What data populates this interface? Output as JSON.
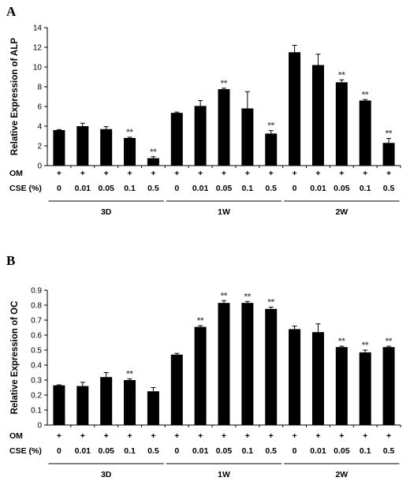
{
  "chart_data": [
    {
      "type": "bar",
      "panel": "A",
      "ylabel": "Relative Expression of ALP",
      "ylim": [
        0,
        14
      ],
      "yticks": [
        "0",
        "2",
        "4",
        "6",
        "8",
        "10",
        "12",
        "14"
      ],
      "row_labels": [
        "OM",
        "CSE (%)"
      ],
      "om_marks": [
        "+",
        "+",
        "+",
        "+",
        "+",
        "+",
        "+",
        "+",
        "+",
        "+",
        "+",
        "+",
        "+",
        "+",
        "+"
      ],
      "cse_values": [
        "0",
        "0.01",
        "0.05",
        "0.1",
        "0.5",
        "0",
        "0.01",
        "0.05",
        "0.1",
        "0.5",
        "0",
        "0.01",
        "0.05",
        "0.1",
        "0.5"
      ],
      "groups": [
        "3D",
        "1W",
        "2W"
      ],
      "values": [
        3.6,
        4.0,
        3.7,
        2.8,
        0.75,
        5.35,
        6.05,
        7.75,
        5.8,
        3.25,
        11.5,
        10.2,
        8.45,
        6.6,
        2.3
      ],
      "errors": [
        0.05,
        0.3,
        0.25,
        0.08,
        0.15,
        0.08,
        0.55,
        0.1,
        1.7,
        0.3,
        0.7,
        1.1,
        0.25,
        0.1,
        0.45
      ],
      "significance": [
        "",
        "",
        "",
        "**",
        "**",
        "",
        "",
        "**",
        "",
        "**",
        "",
        "",
        "**",
        "**",
        "**"
      ]
    },
    {
      "type": "bar",
      "panel": "B",
      "ylabel": "Relative Expression of OC",
      "ylim": [
        0,
        0.9
      ],
      "yticks": [
        "0",
        "0.1",
        "0.2",
        "0.3",
        "0.4",
        "0.5",
        "0.6",
        "0.7",
        "0.8",
        "0.9"
      ],
      "row_labels": [
        "OM",
        "CSE (%)"
      ],
      "om_marks": [
        "+",
        "+",
        "+",
        "+",
        "+",
        "+",
        "+",
        "+",
        "+",
        "+",
        "+",
        "+",
        "+",
        "+",
        "+"
      ],
      "cse_values": [
        "0",
        "0.01",
        "0.05",
        "0.1",
        "0.5",
        "0",
        "0.01",
        "0.05",
        "0.1",
        "0.5",
        "0",
        "0.01",
        "0.05",
        "0.1",
        "0.5"
      ],
      "groups": [
        "3D",
        "1W",
        "2W"
      ],
      "values": [
        0.265,
        0.26,
        0.32,
        0.3,
        0.225,
        0.47,
        0.655,
        0.815,
        0.815,
        0.775,
        0.64,
        0.62,
        0.52,
        0.485,
        0.52
      ],
      "errors": [
        0.003,
        0.025,
        0.03,
        0.008,
        0.025,
        0.008,
        0.008,
        0.015,
        0.01,
        0.012,
        0.02,
        0.055,
        0.006,
        0.015,
        0.006
      ],
      "significance": [
        "",
        "",
        "",
        "**",
        "",
        "",
        "**",
        "**",
        "**",
        "**",
        "",
        "",
        "**",
        "**",
        "**"
      ]
    }
  ]
}
